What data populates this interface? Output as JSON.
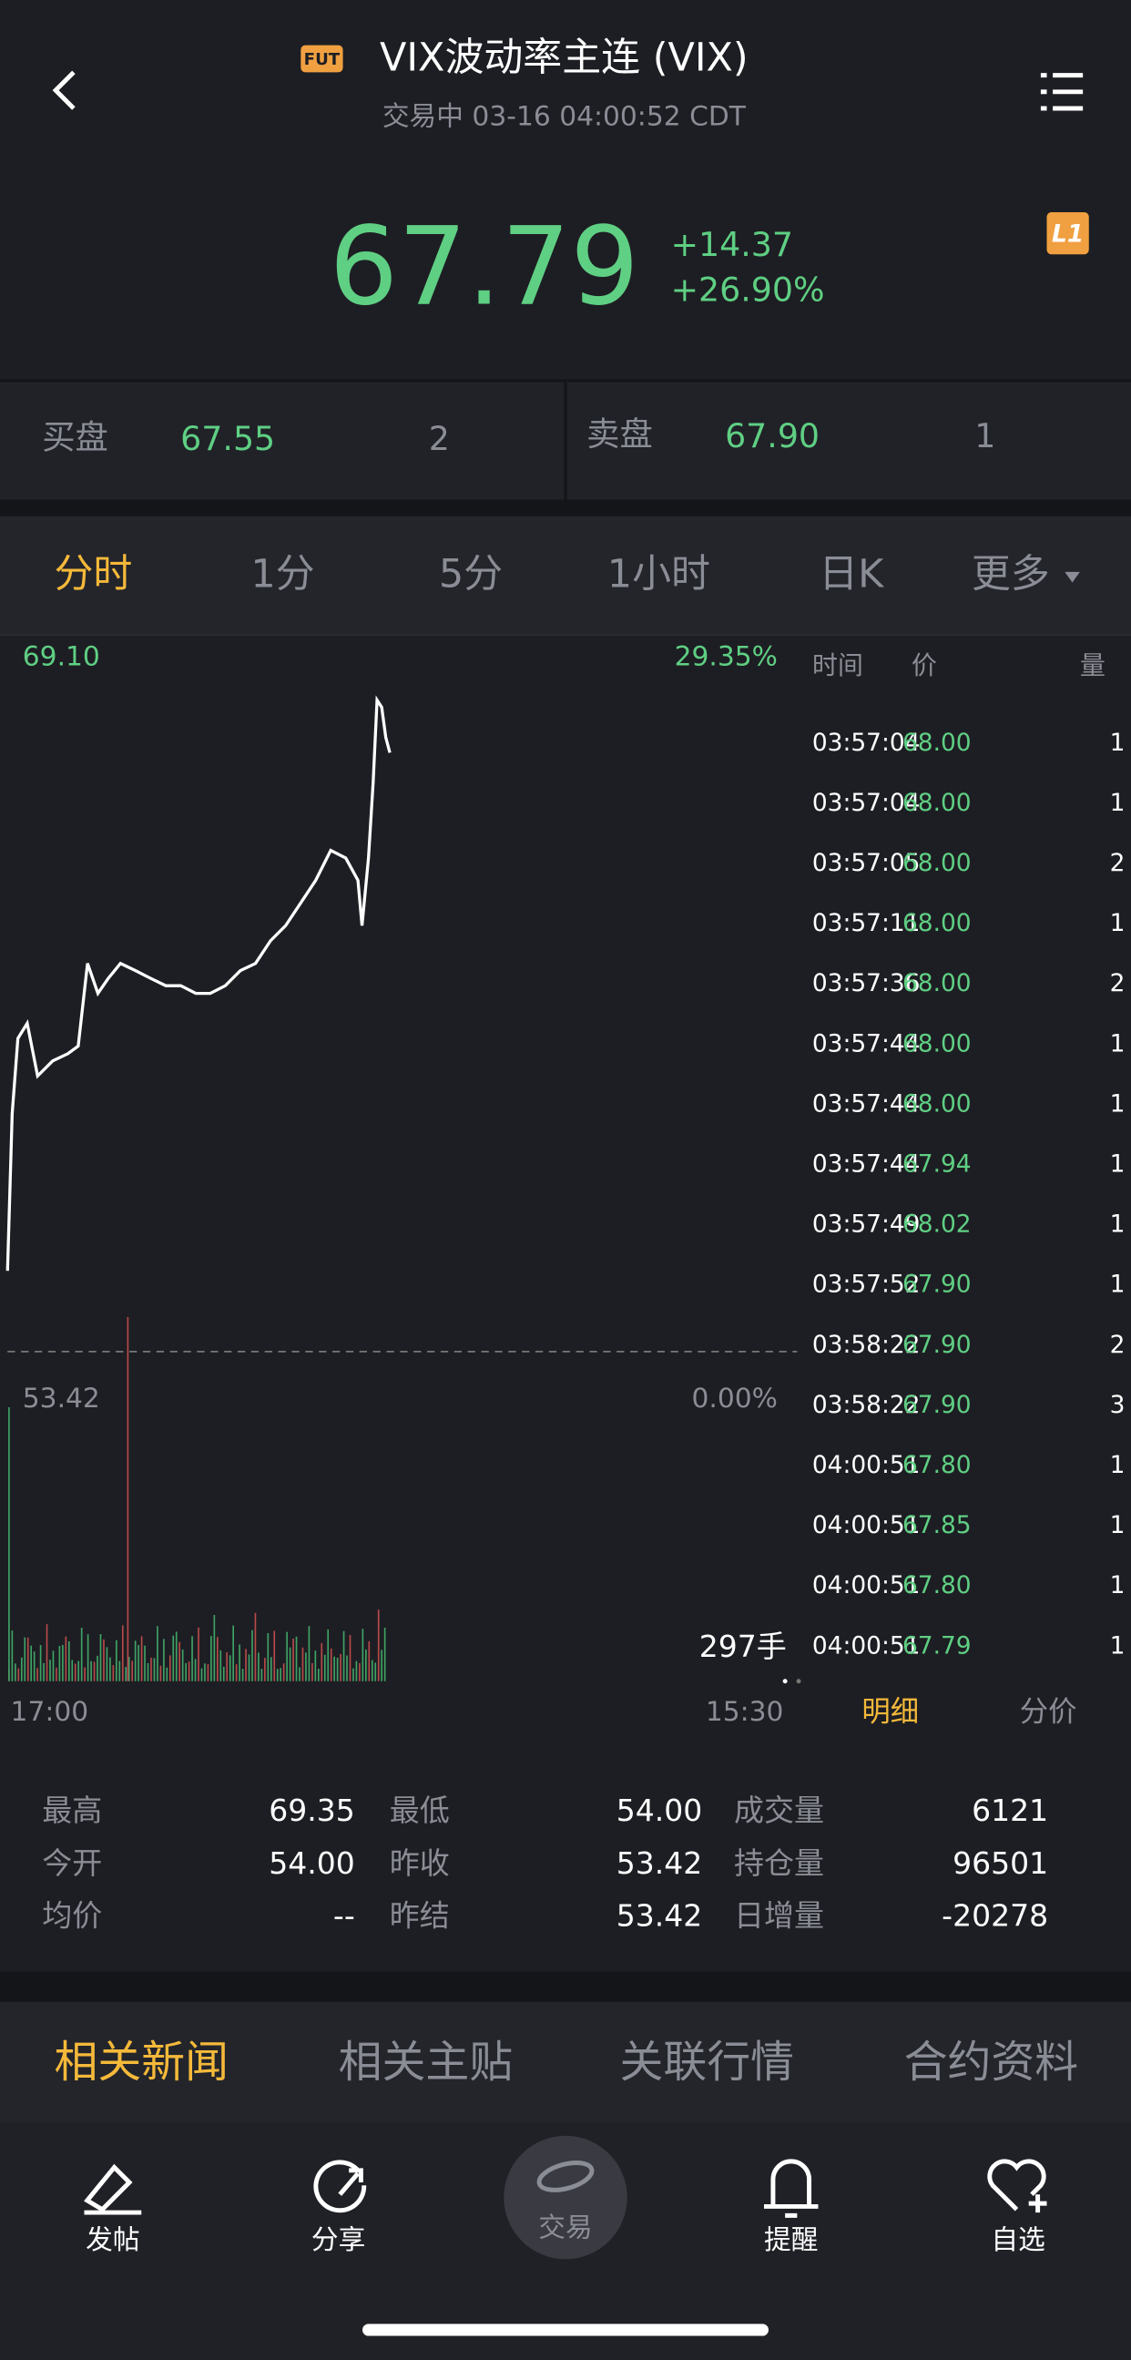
{
  "header": {
    "badge": "FUT",
    "title": "VIX波动率主连 (VIX)",
    "status": "交易中 03-16 04:00:52 CDT"
  },
  "quote": {
    "price": "67.79",
    "change": "+14.37",
    "change_pct": "+26.90%",
    "level_badge": "L1"
  },
  "order_book": {
    "bid": {
      "label": "买盘",
      "price": "67.55",
      "size": "2"
    },
    "ask": {
      "label": "卖盘",
      "price": "67.90",
      "size": "1"
    }
  },
  "period_tabs": [
    "分时",
    "1分",
    "5分",
    "1小时",
    "日K",
    "更多"
  ],
  "intraday": {
    "top": {
      "value": 69.1,
      "label": "69.10"
    },
    "top_pct": "29.35%",
    "prev_close": {
      "value": 53.42,
      "label": "53.42"
    },
    "prev_pct": "0.00%",
    "volume": "297手",
    "time_start": "17:00",
    "time_end": "15:30",
    "xlim": [
      0,
      1350
    ],
    "minutes": [
      0,
      8,
      18,
      34,
      52,
      78,
      104,
      122,
      138,
      156,
      174,
      195,
      221,
      247,
      273,
      299,
      325,
      350,
      376,
      402,
      428,
      454,
      480,
      506,
      532,
      558,
      584,
      605,
      612,
      623,
      631,
      638,
      646,
      653,
      660
    ],
    "prices": [
      55.2,
      58.66,
      60.32,
      60.65,
      59.49,
      59.82,
      59.98,
      60.15,
      61.97,
      61.31,
      61.64,
      61.97,
      61.81,
      61.64,
      61.48,
      61.48,
      61.31,
      61.31,
      61.48,
      61.81,
      61.97,
      62.47,
      62.8,
      63.3,
      63.8,
      64.46,
      64.29,
      63.8,
      62.8,
      64.29,
      65.95,
      67.77,
      67.61,
      66.95,
      66.61
    ]
  },
  "trades": {
    "header": [
      "时间",
      "价",
      "量"
    ],
    "rows": [
      [
        "03:57:04",
        "68.00",
        "1"
      ],
      [
        "03:57:04",
        "68.00",
        "1"
      ],
      [
        "03:57:05",
        "68.00",
        "2"
      ],
      [
        "03:57:11",
        "68.00",
        "1"
      ],
      [
        "03:57:36",
        "68.00",
        "2"
      ],
      [
        "03:57:44",
        "68.00",
        "1"
      ],
      [
        "03:57:44",
        "68.00",
        "1"
      ],
      [
        "03:57:44",
        "67.94",
        "1"
      ],
      [
        "03:57:49",
        "68.02",
        "1"
      ],
      [
        "03:57:52",
        "67.90",
        "1"
      ],
      [
        "03:58:22",
        "67.90",
        "2"
      ],
      [
        "03:58:22",
        "67.90",
        "3"
      ],
      [
        "04:00:51",
        "67.80",
        "1"
      ],
      [
        "04:00:51",
        "67.85",
        "1"
      ],
      [
        "04:00:51",
        "67.80",
        "1"
      ],
      [
        "04:00:51",
        "67.79",
        "1"
      ]
    ],
    "tabs": [
      "明细",
      "分价"
    ]
  },
  "stats": {
    "rows": [
      [
        "最高",
        "69.35",
        "最低",
        "54.00",
        "成交量",
        "6121"
      ],
      [
        "今开",
        "54.00",
        "昨收",
        "53.42",
        "持仓量",
        "96501"
      ],
      [
        "均价",
        "--",
        "昨结",
        "53.42",
        "日增量",
        "-20278"
      ]
    ]
  },
  "news_tabs": [
    "相关新闻",
    "相关主贴",
    "关联行情",
    "合约资料"
  ],
  "bottom_nav": [
    "发帖",
    "分享",
    "交易",
    "提醒",
    "自选"
  ]
}
